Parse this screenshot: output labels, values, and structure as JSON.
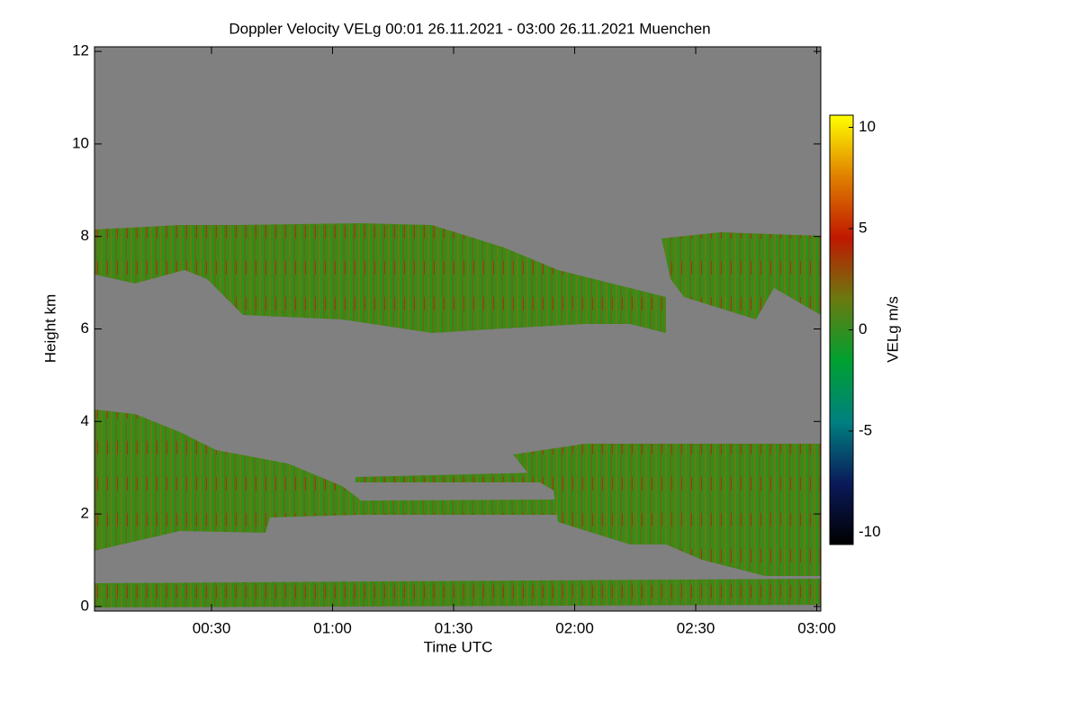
{
  "chart_data": {
    "type": "heatmap",
    "title": "Doppler Velocity VELg   00:01 26.11.2021 - 03:00 26.11.2021 Muenchen",
    "xlabel": "Time UTC",
    "ylabel": "Height km",
    "xlim": [
      1,
      181
    ],
    "xticks": [
      {
        "value": 30,
        "label": "00:30"
      },
      {
        "value": 60,
        "label": "01:00"
      },
      {
        "value": 90,
        "label": "01:30"
      },
      {
        "value": 120,
        "label": "02:00"
      },
      {
        "value": 150,
        "label": "02:30"
      },
      {
        "value": 180,
        "label": "03:00"
      }
    ],
    "ylim": [
      -0.1,
      12.1
    ],
    "yticks": [
      0,
      2,
      4,
      6,
      8,
      10,
      12
    ],
    "grid": false,
    "background": "#808080",
    "colorbar": {
      "label": "VELg m/s",
      "clim": [
        -10.6,
        10.6
      ],
      "ticks": [
        -10,
        -5,
        0,
        5,
        10
      ],
      "colormap": [
        "#000000",
        "#0a1a5a",
        "#008080",
        "#00a030",
        "#6a7a10",
        "#c01800",
        "#e08000",
        "#ffff00"
      ]
    }
  }
}
